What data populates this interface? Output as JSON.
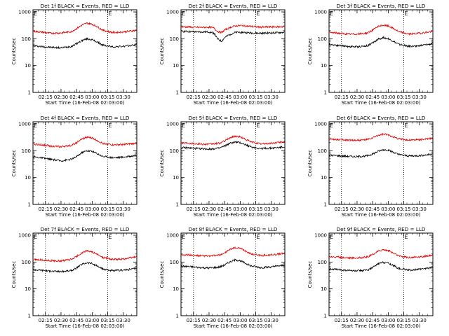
{
  "figure": {
    "ylabel": "Counts/sec",
    "xlabel": "Start Time (16-Feb-08 02:03:00)",
    "x_ticks": [
      "02:15",
      "02:30",
      "02:45",
      "03:00",
      "03:15",
      "03:30"
    ],
    "y_ticks": [
      "1",
      "10",
      "100",
      "1000"
    ],
    "colors": {
      "events": "#000000",
      "lld": "#e00000",
      "axis": "#000000",
      "background": "#ffffff"
    },
    "marker_labels": [
      "E",
      "E"
    ]
  },
  "chart_data": [
    {
      "type": "line",
      "title": "Det 1f BLACK = Events, RED = LLD",
      "xlabel": "Start Time (16-Feb-08 02:03:00)",
      "ylabel": "Counts/sec",
      "ylog": true,
      "ylim": [
        1,
        1200
      ],
      "xlim": [
        "02:03",
        "03:43"
      ],
      "x_ticks": [
        "02:15",
        "02:30",
        "02:45",
        "03:00",
        "03:15",
        "03:30"
      ],
      "vlines": [
        "02:15",
        "03:15"
      ],
      "annotations": [
        {
          "text": "E",
          "x": "02:03"
        },
        {
          "text": "E",
          "x": "03:15"
        }
      ],
      "x": [
        "02:03",
        "02:10",
        "02:20",
        "02:30",
        "02:40",
        "02:45",
        "02:50",
        "02:55",
        "03:00",
        "03:05",
        "03:10",
        "03:20",
        "03:30",
        "03:40",
        "03:43"
      ],
      "series": [
        {
          "name": "Events",
          "color": "#000000",
          "values": [
            55,
            52,
            48,
            46,
            52,
            65,
            85,
            100,
            92,
            75,
            58,
            50,
            52,
            58,
            62
          ]
        },
        {
          "name": "LLD",
          "color": "#e00000",
          "values": [
            190,
            180,
            160,
            165,
            185,
            240,
            320,
            380,
            350,
            280,
            210,
            170,
            180,
            200,
            210
          ]
        }
      ]
    },
    {
      "type": "line",
      "title": "Det 2f BLACK = Events, RED = LLD",
      "xlabel": "Start Time (16-Feb-08 02:03:00)",
      "ylabel": "Counts/sec",
      "ylog": true,
      "ylim": [
        1,
        1200
      ],
      "xlim": [
        "02:03",
        "03:43"
      ],
      "x_ticks": [
        "02:15",
        "02:30",
        "02:45",
        "03:00",
        "03:15",
        "03:30"
      ],
      "vlines": [
        "02:15",
        "03:15"
      ],
      "annotations": [
        {
          "text": "E",
          "x": "02:03"
        },
        {
          "text": "E",
          "x": "03:15"
        }
      ],
      "x": [
        "02:03",
        "02:10",
        "02:20",
        "02:30",
        "02:35",
        "02:38",
        "02:42",
        "02:45",
        "02:50",
        "02:55",
        "03:00",
        "03:05",
        "03:10",
        "03:20",
        "03:30",
        "03:40",
        "03:43"
      ],
      "series": [
        {
          "name": "Events",
          "color": "#000000",
          "values": [
            190,
            185,
            178,
            180,
            160,
            100,
            80,
            110,
            145,
            170,
            175,
            170,
            165,
            160,
            165,
            170,
            175
          ]
        },
        {
          "name": "LLD",
          "color": "#e00000",
          "values": [
            280,
            275,
            265,
            270,
            250,
            190,
            170,
            210,
            260,
            300,
            310,
            300,
            290,
            270,
            275,
            280,
            285
          ]
        }
      ]
    },
    {
      "type": "line",
      "title": "Det 3f BLACK = Events, RED = LLD",
      "xlabel": "Start Time (16-Feb-08 02:03:00)",
      "ylabel": "Counts/sec",
      "ylog": true,
      "ylim": [
        1,
        1200
      ],
      "xlim": [
        "02:03",
        "03:43"
      ],
      "x_ticks": [
        "02:15",
        "02:30",
        "02:45",
        "03:00",
        "03:15",
        "03:30"
      ],
      "vlines": [
        "02:15",
        "03:15"
      ],
      "annotations": [
        {
          "text": "E",
          "x": "02:03"
        },
        {
          "text": "E",
          "x": "03:15"
        }
      ],
      "x": [
        "02:03",
        "02:10",
        "02:20",
        "02:30",
        "02:40",
        "02:45",
        "02:50",
        "02:55",
        "03:00",
        "03:05",
        "03:10",
        "03:20",
        "03:30",
        "03:40",
        "03:43"
      ],
      "series": [
        {
          "name": "Events",
          "color": "#000000",
          "values": [
            62,
            58,
            52,
            50,
            55,
            70,
            95,
            110,
            100,
            80,
            62,
            52,
            55,
            62,
            68
          ]
        },
        {
          "name": "LLD",
          "color": "#e00000",
          "values": [
            170,
            165,
            150,
            148,
            165,
            210,
            280,
            320,
            300,
            240,
            185,
            150,
            160,
            180,
            190
          ]
        }
      ]
    },
    {
      "type": "line",
      "title": "Det 4f BLACK = Events, RED = LLD",
      "xlabel": "Start Time (16-Feb-08 02:03:00)",
      "ylabel": "Counts/sec",
      "ylog": true,
      "ylim": [
        1,
        1200
      ],
      "xlim": [
        "02:03",
        "03:43"
      ],
      "x_ticks": [
        "02:15",
        "02:30",
        "02:45",
        "03:00",
        "03:15",
        "03:30"
      ],
      "vlines": [
        "02:15",
        "03:15"
      ],
      "annotations": [
        {
          "text": "E",
          "x": "02:03"
        },
        {
          "text": "E",
          "x": "03:15"
        }
      ],
      "x": [
        "02:03",
        "02:10",
        "02:20",
        "02:30",
        "02:40",
        "02:45",
        "02:50",
        "02:55",
        "03:00",
        "03:05",
        "03:10",
        "03:20",
        "03:30",
        "03:40",
        "03:43"
      ],
      "series": [
        {
          "name": "Events",
          "color": "#000000",
          "values": [
            60,
            55,
            48,
            42,
            48,
            60,
            85,
            100,
            95,
            78,
            62,
            55,
            58,
            65,
            72
          ]
        },
        {
          "name": "LLD",
          "color": "#e00000",
          "values": [
            175,
            170,
            150,
            140,
            160,
            200,
            270,
            320,
            300,
            240,
            190,
            165,
            170,
            185,
            195
          ]
        }
      ]
    },
    {
      "type": "line",
      "title": "Det 5f BLACK = Events, RED = LLD",
      "xlabel": "Start Time (16-Feb-08 02:03:00)",
      "ylabel": "Counts/sec",
      "ylog": true,
      "ylim": [
        1,
        1200
      ],
      "xlim": [
        "02:03",
        "03:43"
      ],
      "x_ticks": [
        "02:15",
        "02:30",
        "02:45",
        "03:00",
        "03:15",
        "03:30"
      ],
      "vlines": [
        "02:15",
        "03:15"
      ],
      "annotations": [
        {
          "text": "E",
          "x": "02:03"
        },
        {
          "text": "E",
          "x": "03:15"
        }
      ],
      "x": [
        "02:03",
        "02:10",
        "02:20",
        "02:30",
        "02:40",
        "02:45",
        "02:50",
        "02:55",
        "03:00",
        "03:05",
        "03:10",
        "03:20",
        "03:30",
        "03:40",
        "03:43"
      ],
      "series": [
        {
          "name": "Events",
          "color": "#000000",
          "values": [
            130,
            128,
            120,
            115,
            125,
            150,
            190,
            210,
            200,
            170,
            140,
            120,
            125,
            135,
            145
          ]
        },
        {
          "name": "LLD",
          "color": "#e00000",
          "values": [
            200,
            195,
            180,
            175,
            190,
            230,
            300,
            350,
            330,
            270,
            215,
            180,
            190,
            210,
            225
          ]
        }
      ]
    },
    {
      "type": "line",
      "title": "Det 6f BLACK = Events, RED = LLD",
      "xlabel": "Start Time (16-Feb-08 02:03:00)",
      "ylabel": "Counts/sec",
      "ylog": true,
      "ylim": [
        1,
        1200
      ],
      "xlim": [
        "02:03",
        "03:43"
      ],
      "x_ticks": [
        "02:15",
        "02:30",
        "02:45",
        "03:00",
        "03:15",
        "03:30"
      ],
      "vlines": [
        "02:15",
        "03:15"
      ],
      "annotations": [
        {
          "text": "E",
          "x": "02:03"
        },
        {
          "text": "E",
          "x": "03:15"
        }
      ],
      "x": [
        "02:03",
        "02:10",
        "02:20",
        "02:30",
        "02:40",
        "02:45",
        "02:50",
        "02:55",
        "03:00",
        "03:05",
        "03:10",
        "03:20",
        "03:30",
        "03:40",
        "03:43"
      ],
      "series": [
        {
          "name": "Events",
          "color": "#000000",
          "values": [
            68,
            66,
            62,
            60,
            65,
            75,
            95,
            110,
            105,
            88,
            72,
            64,
            66,
            72,
            76
          ]
        },
        {
          "name": "LLD",
          "color": "#e00000",
          "values": [
            270,
            265,
            250,
            245,
            260,
            300,
            370,
            410,
            390,
            330,
            280,
            250,
            260,
            280,
            290
          ]
        }
      ]
    },
    {
      "type": "line",
      "title": "Det 7f BLACK = Events, RED = LLD",
      "xlabel": "Start Time (16-Feb-08 02:03:00)",
      "ylabel": "Counts/sec",
      "ylog": true,
      "ylim": [
        1,
        1200
      ],
      "xlim": [
        "02:03",
        "03:43"
      ],
      "x_ticks": [
        "02:15",
        "02:30",
        "02:45",
        "03:00",
        "03:15",
        "03:30"
      ],
      "vlines": [
        "02:15",
        "03:15"
      ],
      "annotations": [
        {
          "text": "E",
          "x": "02:03"
        },
        {
          "text": "E",
          "x": "03:15"
        }
      ],
      "x": [
        "02:03",
        "02:10",
        "02:20",
        "02:30",
        "02:40",
        "02:45",
        "02:50",
        "02:55",
        "03:00",
        "03:05",
        "03:10",
        "03:20",
        "03:30",
        "03:40",
        "03:43"
      ],
      "series": [
        {
          "name": "Events",
          "color": "#000000",
          "values": [
            52,
            50,
            46,
            44,
            48,
            60,
            82,
            95,
            88,
            70,
            55,
            47,
            50,
            56,
            62
          ]
        },
        {
          "name": "LLD",
          "color": "#e00000",
          "values": [
            125,
            120,
            112,
            110,
            125,
            160,
            220,
            260,
            240,
            190,
            150,
            125,
            130,
            150,
            165
          ]
        }
      ]
    },
    {
      "type": "line",
      "title": "Det 8f BLACK = Events, RED = LLD",
      "xlabel": "Start Time (16-Feb-08 02:03:00)",
      "ylabel": "Counts/sec",
      "ylog": true,
      "ylim": [
        1,
        1200
      ],
      "xlim": [
        "02:03",
        "03:43"
      ],
      "x_ticks": [
        "02:15",
        "02:30",
        "02:45",
        "03:00",
        "03:15",
        "03:30"
      ],
      "vlines": [
        "02:15",
        "03:15"
      ],
      "annotations": [
        {
          "text": "E",
          "x": "02:03"
        },
        {
          "text": "E",
          "x": "03:15"
        }
      ],
      "x": [
        "02:03",
        "02:10",
        "02:20",
        "02:30",
        "02:40",
        "02:45",
        "02:50",
        "02:55",
        "03:00",
        "03:05",
        "03:10",
        "03:20",
        "03:30",
        "03:40",
        "03:43"
      ],
      "series": [
        {
          "name": "Events",
          "color": "#000000",
          "values": [
            70,
            68,
            63,
            60,
            65,
            78,
            100,
            120,
            112,
            90,
            72,
            62,
            66,
            74,
            80
          ]
        },
        {
          "name": "LLD",
          "color": "#e00000",
          "values": [
            190,
            185,
            172,
            168,
            180,
            220,
            290,
            340,
            320,
            260,
            205,
            175,
            185,
            205,
            220
          ]
        }
      ]
    },
    {
      "type": "line",
      "title": "Det 9f BLACK = Events, RED = LLD",
      "xlabel": "Start Time (16-Feb-08 02:03:00)",
      "ylabel": "Counts/sec",
      "ylog": true,
      "ylim": [
        1,
        1200
      ],
      "xlim": [
        "02:03",
        "03:43"
      ],
      "x_ticks": [
        "02:15",
        "02:30",
        "02:45",
        "03:00",
        "03:15",
        "03:30"
      ],
      "vlines": [
        "02:15",
        "03:15"
      ],
      "annotations": [
        {
          "text": "E",
          "x": "02:03"
        },
        {
          "text": "E",
          "x": "03:15"
        }
      ],
      "x": [
        "02:03",
        "02:10",
        "02:20",
        "02:30",
        "02:40",
        "02:45",
        "02:50",
        "02:55",
        "03:00",
        "03:05",
        "03:10",
        "03:20",
        "03:30",
        "03:40",
        "03:43"
      ],
      "series": [
        {
          "name": "Events",
          "color": "#000000",
          "values": [
            55,
            53,
            49,
            47,
            50,
            62,
            85,
            98,
            92,
            74,
            58,
            50,
            53,
            60,
            66
          ]
        },
        {
          "name": "LLD",
          "color": "#e00000",
          "values": [
            160,
            155,
            145,
            142,
            155,
            190,
            250,
            290,
            270,
            215,
            170,
            148,
            155,
            172,
            182
          ]
        }
      ]
    }
  ]
}
